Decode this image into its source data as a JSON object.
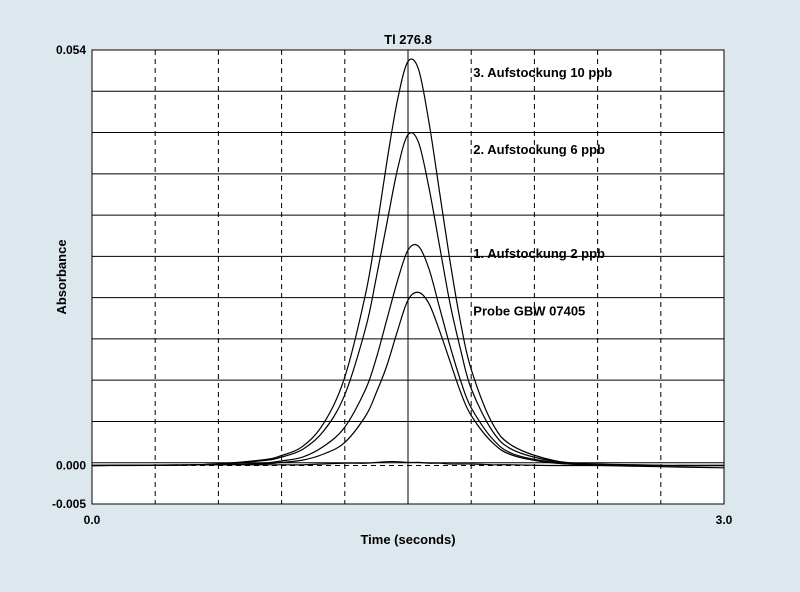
{
  "chart_data": {
    "type": "line",
    "title": "Tl 276.8",
    "xlabel": "Time (seconds)",
    "ylabel": "Absorbance",
    "xlim": [
      0.0,
      3.0
    ],
    "ylim": [
      -0.005,
      0.054
    ],
    "x_tick_labels": [
      {
        "value": 0.0,
        "label": "0.0"
      },
      {
        "value": 3.0,
        "label": "3.0"
      }
    ],
    "y_tick_labels": [
      {
        "value": 0.054,
        "label": "0.054"
      },
      {
        "value": 0.0,
        "label": "0.000"
      },
      {
        "value": -0.005,
        "label": "-0.005"
      }
    ],
    "grid": true,
    "legend": "none",
    "x": [
      0.0,
      0.5,
      0.8,
      0.9,
      1.0,
      1.1,
      1.2,
      1.3,
      1.35,
      1.4,
      1.45,
      1.5,
      1.55,
      1.6,
      1.65,
      1.7,
      1.75,
      1.8,
      1.9,
      2.0,
      2.2,
      2.4,
      2.6,
      2.8,
      3.0
    ],
    "series": [
      {
        "name": "3. Aufstockung 10 ppb",
        "color": "#000000",
        "values": [
          0.0,
          0.0001,
          0.0007,
          0.0013,
          0.0025,
          0.0055,
          0.0115,
          0.0225,
          0.0305,
          0.0395,
          0.0475,
          0.0525,
          0.0515,
          0.0445,
          0.0355,
          0.0265,
          0.0185,
          0.0125,
          0.0055,
          0.0025,
          0.0006,
          0.0002,
          0.0001,
          0.0,
          0.0
        ]
      },
      {
        "name": "2. Aufstockung 6 ppb",
        "color": "#000000",
        "values": [
          0.0,
          0.0001,
          0.0006,
          0.0011,
          0.0021,
          0.0045,
          0.0092,
          0.018,
          0.0245,
          0.0315,
          0.0385,
          0.043,
          0.042,
          0.036,
          0.0285,
          0.021,
          0.015,
          0.01,
          0.0045,
          0.002,
          0.0005,
          0.0001,
          0.0,
          0.0,
          0.0
        ]
      },
      {
        "name": "1. Aufstockung 2 ppb",
        "color": "#000000",
        "values": [
          0.0,
          0.0001,
          0.0003,
          0.0006,
          0.0011,
          0.0025,
          0.005,
          0.01,
          0.014,
          0.019,
          0.024,
          0.028,
          0.0285,
          0.0255,
          0.0205,
          0.0155,
          0.011,
          0.0075,
          0.0035,
          0.0015,
          0.0004,
          0.0001,
          0.0,
          0.0,
          0.0
        ]
      },
      {
        "name": "Probe GBW 07405",
        "color": "#000000",
        "values": [
          0.0,
          0.0001,
          0.0002,
          0.0004,
          0.0007,
          0.0015,
          0.003,
          0.0065,
          0.0095,
          0.013,
          0.0175,
          0.0215,
          0.0225,
          0.021,
          0.0175,
          0.0135,
          0.0095,
          0.0065,
          0.003,
          0.0013,
          0.0003,
          0.0001,
          0.0,
          0.0,
          0.0
        ]
      },
      {
        "name": "",
        "color": "#000000",
        "values": [
          0.0,
          0.0001,
          0.0001,
          0.0001,
          0.0001,
          0.0002,
          0.0003,
          0.0003,
          0.0004,
          0.0005,
          0.0005,
          0.0004,
          0.0004,
          0.0003,
          0.0003,
          0.0002,
          0.0002,
          0.0002,
          0.0001,
          0.0001,
          0.0,
          0.0,
          -0.0001,
          -0.0002,
          -0.0003
        ]
      }
    ],
    "annotations": [
      {
        "text": "3. Aufstockung 10 ppb",
        "x": 1.81,
        "y": 0.0505
      },
      {
        "text": "2. Aufstockung 6 ppb",
        "x": 1.81,
        "y": 0.0405
      },
      {
        "text": "1. Aufstockung 2 ppb",
        "x": 1.81,
        "y": 0.027
      },
      {
        "text": "Probe GBW 07405",
        "x": 1.81,
        "y": 0.0195
      }
    ]
  }
}
